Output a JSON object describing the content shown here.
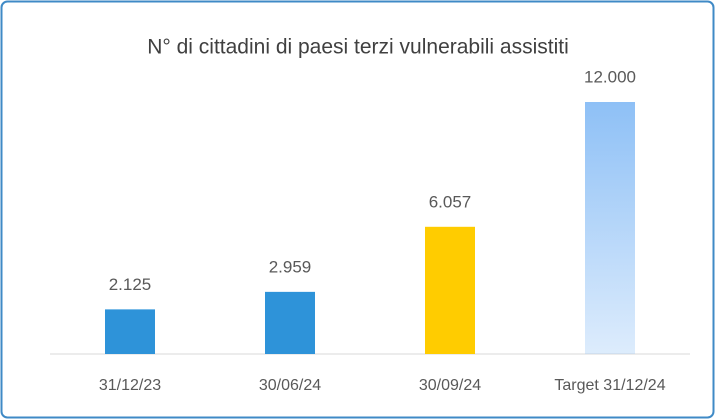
{
  "chart_data": {
    "type": "bar",
    "title": "N° di cittadini di paesi terzi vulnerabili assistiti",
    "categories": [
      "31/12/23",
      "30/06/24",
      "30/09/24",
      "Target 31/12/24"
    ],
    "values": [
      2125,
      2959,
      6057,
      12000
    ],
    "value_labels": [
      "2.125",
      "2.959",
      "6.057",
      "12.000"
    ],
    "colors": [
      "#2e93d9",
      "#2e93d9",
      "#ffcc00",
      "#8ec0f6"
    ]
  }
}
